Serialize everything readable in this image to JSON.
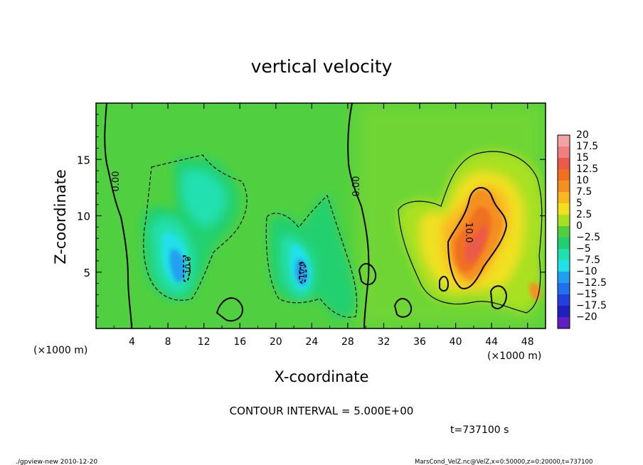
{
  "chart_data": {
    "type": "heatmap",
    "title": "vertical velocity",
    "xlabel": "X-coordinate",
    "ylabel": "Z-coordinate",
    "x_unit_left": "(×1000 m)",
    "x_unit_right": "(×1000 m)",
    "xlim": [
      0,
      50
    ],
    "ylim": [
      0,
      20
    ],
    "x_ticks": [
      4,
      8,
      12,
      16,
      20,
      24,
      28,
      32,
      36,
      40,
      44,
      48
    ],
    "y_ticks": [
      5,
      10,
      15
    ],
    "colorbar": {
      "labels": [
        "20",
        "17.5",
        "15",
        "12.5",
        "10",
        "7.5",
        "5",
        "2.5",
        "0",
        "−2.5",
        "−5",
        "−7.5",
        "−10",
        "−12.5",
        "−15",
        "−17.5",
        "−20"
      ],
      "values": [
        20,
        17.5,
        15,
        12.5,
        10,
        7.5,
        5,
        2.5,
        0,
        -2.5,
        -5,
        -7.5,
        -10,
        -12.5,
        -15,
        -17.5,
        -20
      ],
      "colors": [
        "#f4a3a3",
        "#f08080",
        "#ec5a4a",
        "#f07020",
        "#f49020",
        "#fab820",
        "#f0e020",
        "#a8e020",
        "#50d040",
        "#20d070",
        "#20e0b0",
        "#20e0e8",
        "#20a0f0",
        "#2070f0",
        "#2040e0",
        "#2020c0",
        "#6020c0"
      ]
    },
    "contour_labels": [
      "0.00",
      "0.00",
      "-10.0",
      "-10.0",
      "10.0"
    ],
    "features": [
      {
        "type": "updraft",
        "x": 42,
        "z": 8,
        "peak": 12.5
      },
      {
        "type": "updraft",
        "x": 43,
        "z": 11,
        "peak": 10
      },
      {
        "type": "downdraft",
        "x": 10,
        "z": 5,
        "peak": -10
      },
      {
        "type": "downdraft",
        "x": 23,
        "z": 5,
        "peak": -10
      }
    ],
    "grid": false,
    "legend": "right"
  },
  "annotations": {
    "contour_interval": "CONTOUR INTERVAL = 5.000E+00",
    "time": "t=737100 s",
    "footer_left": "./gpview-new   2010-12-20",
    "footer_right": "MarsCond_VelZ.nc@VelZ,x=0:50000,z=0:20000,t=737100"
  }
}
